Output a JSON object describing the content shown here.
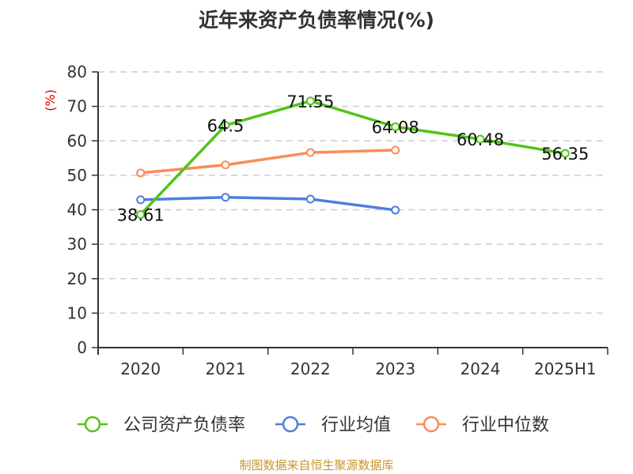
{
  "title": "近年来资产负债率情况(%)",
  "source": "制图数据来自恒生聚源数据库",
  "colors": {
    "company": "#52c41a",
    "avg": "#4e7fdc",
    "median": "#fa8c5a",
    "unit": "#e00000",
    "axis": "#333333",
    "grid": "#cccccc"
  },
  "chart_data": {
    "type": "line",
    "title": "近年来资产负债率情况(%)",
    "xlabel": "",
    "ylabel": "(%)",
    "ylim": [
      0,
      80
    ],
    "yticks": [
      0,
      10,
      20,
      30,
      40,
      50,
      60,
      70,
      80
    ],
    "grid": true,
    "legend_position": "bottom",
    "categories": [
      "2020",
      "2021",
      "2022",
      "2023",
      "2024",
      "2025H1"
    ],
    "series": [
      {
        "name": "公司资产负债率",
        "color": "#52c41a",
        "values": [
          38.61,
          64.5,
          71.55,
          64.08,
          60.48,
          56.35
        ],
        "labels": [
          "38.61",
          "64.5",
          "71.55",
          "64.08",
          "60.48",
          "56.35"
        ]
      },
      {
        "name": "行业均值",
        "color": "#4e7fdc",
        "values": [
          42.9,
          43.6,
          43.1,
          39.9,
          null,
          null
        ]
      },
      {
        "name": "行业中位数",
        "color": "#fa8c5a",
        "values": [
          50.7,
          53.0,
          56.6,
          57.3,
          null,
          null
        ]
      }
    ]
  }
}
